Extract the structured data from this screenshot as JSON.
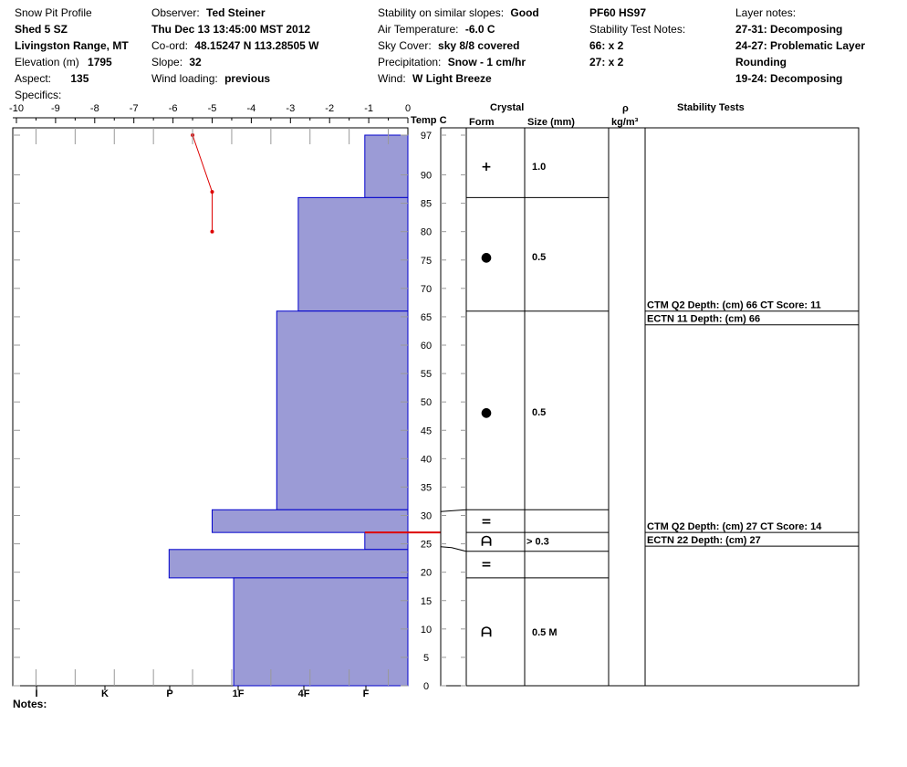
{
  "header": {
    "title": "Snow Pit Profile",
    "pit_name": "Shed 5 SZ",
    "range": "Livingston Range, MT",
    "elevation_label": "Elevation (m)",
    "elevation_value": "1795",
    "aspect_label": "Aspect:",
    "aspect_value": "135",
    "specifics_label": "Specifics:",
    "observer_label": "Observer:",
    "observer_value": "Ted Steiner",
    "datetime": "Thu Dec 13 13:45:00 MST 2012",
    "coord_label": "Co-ord:",
    "coord_value": "48.15247 N 113.28505 W",
    "slope_label": "Slope:",
    "slope_value": "32",
    "wind_loading_label": "Wind loading:",
    "wind_loading_value": "previous",
    "stability_label": "Stability on similar slopes:",
    "stability_value": "Good",
    "air_temp_label": "Air Temperature:",
    "air_temp_value": "-6.0 C",
    "sky_label": "Sky Cover:",
    "sky_value": "sky 8/8 covered",
    "precip_label": "Precipitation:",
    "precip_value": "Snow - 1 cm/hr",
    "wind_label": "Wind:",
    "wind_value": "W Light Breeze",
    "pf_hs": "PF60 HS97",
    "stab_notes_label": "Stability Test Notes:",
    "stab_notes": [
      "66: x 2",
      "27: x 2"
    ],
    "layer_notes_label": "Layer notes:",
    "layer_notes": [
      "27-31: Decomposing",
      "24-27: Problematic Layer",
      "Rounding",
      "19-24: Decomposing"
    ]
  },
  "columns": {
    "temp": "Temp C",
    "crystal": "Crystal",
    "form": "Form",
    "size": "Size (mm)",
    "rho": "ρ",
    "density_unit": "kg/m³",
    "stability": "Stability Tests"
  },
  "notes_label": "Notes:",
  "chart_data": {
    "type": "bar",
    "title": "Snow Pit Profile",
    "temp_axis": {
      "ticks": [
        -10,
        -9,
        -8,
        -7,
        -6,
        -5,
        -4,
        -3,
        -2,
        -1,
        0
      ],
      "range": [
        -10,
        0
      ]
    },
    "height_axis": {
      "label": "Temp C",
      "ticks": [
        97,
        90,
        85,
        80,
        75,
        70,
        65,
        60,
        55,
        50,
        45,
        40,
        35,
        30,
        25,
        20,
        15,
        10,
        5,
        0
      ],
      "range": [
        0,
        97
      ]
    },
    "hardness_axis": {
      "ticks": [
        "I",
        "K",
        "P",
        "1F",
        "4F",
        "F"
      ]
    },
    "hardness_layers": [
      {
        "bottom": 86,
        "top": 97,
        "temp_value": -1.1
      },
      {
        "bottom": 66,
        "top": 86,
        "temp_value": -2.8
      },
      {
        "bottom": 31,
        "top": 66,
        "temp_value": -3.35
      },
      {
        "bottom": 27,
        "top": 31,
        "temp_value": -5.0
      },
      {
        "bottom": 24,
        "top": 27,
        "temp_value": -1.1
      },
      {
        "bottom": 19,
        "top": 24,
        "temp_value": -6.1
      },
      {
        "bottom": 0,
        "top": 19,
        "temp_value": -4.45
      }
    ],
    "critical_layer_height": 27,
    "temperature_profile": [
      {
        "height": 97,
        "temp": -5.5
      },
      {
        "height": 87,
        "temp": -5.0
      },
      {
        "height": 80,
        "temp": -5.0
      }
    ],
    "crystal_layers": [
      {
        "bottom": 86,
        "top": 97,
        "form": "+",
        "size": "1.0"
      },
      {
        "bottom": 66,
        "top": 86,
        "form": "●",
        "size": "0.5"
      },
      {
        "bottom": 31,
        "top": 66,
        "form": "●",
        "size": "0.5"
      },
      {
        "bottom": 27,
        "top": 31,
        "form": "=",
        "size": ""
      },
      {
        "bottom": 24,
        "top": 27,
        "form": "ᗩ",
        "size": "> 0.3"
      },
      {
        "bottom": 19,
        "top": 24,
        "form": "=",
        "size": ""
      },
      {
        "bottom": 0,
        "top": 19,
        "form": "ᗩ",
        "size": "0.5 M"
      }
    ],
    "stability_tests": [
      {
        "height": 66,
        "lines": [
          "CTM Q2 Depth: (cm) 66 CT Score: 11",
          "ECTN 11   Depth: (cm) 66"
        ]
      },
      {
        "height": 27,
        "lines": [
          "CTM Q2 Depth: (cm) 27 CT Score: 14",
          "ECTN 22   Depth: (cm) 27"
        ]
      }
    ],
    "colors": {
      "hardness_fill": "#9b9bd6",
      "hardness_edge": "#0000cc",
      "temp_line": "#dd0000",
      "critical": "#dd0000"
    }
  }
}
